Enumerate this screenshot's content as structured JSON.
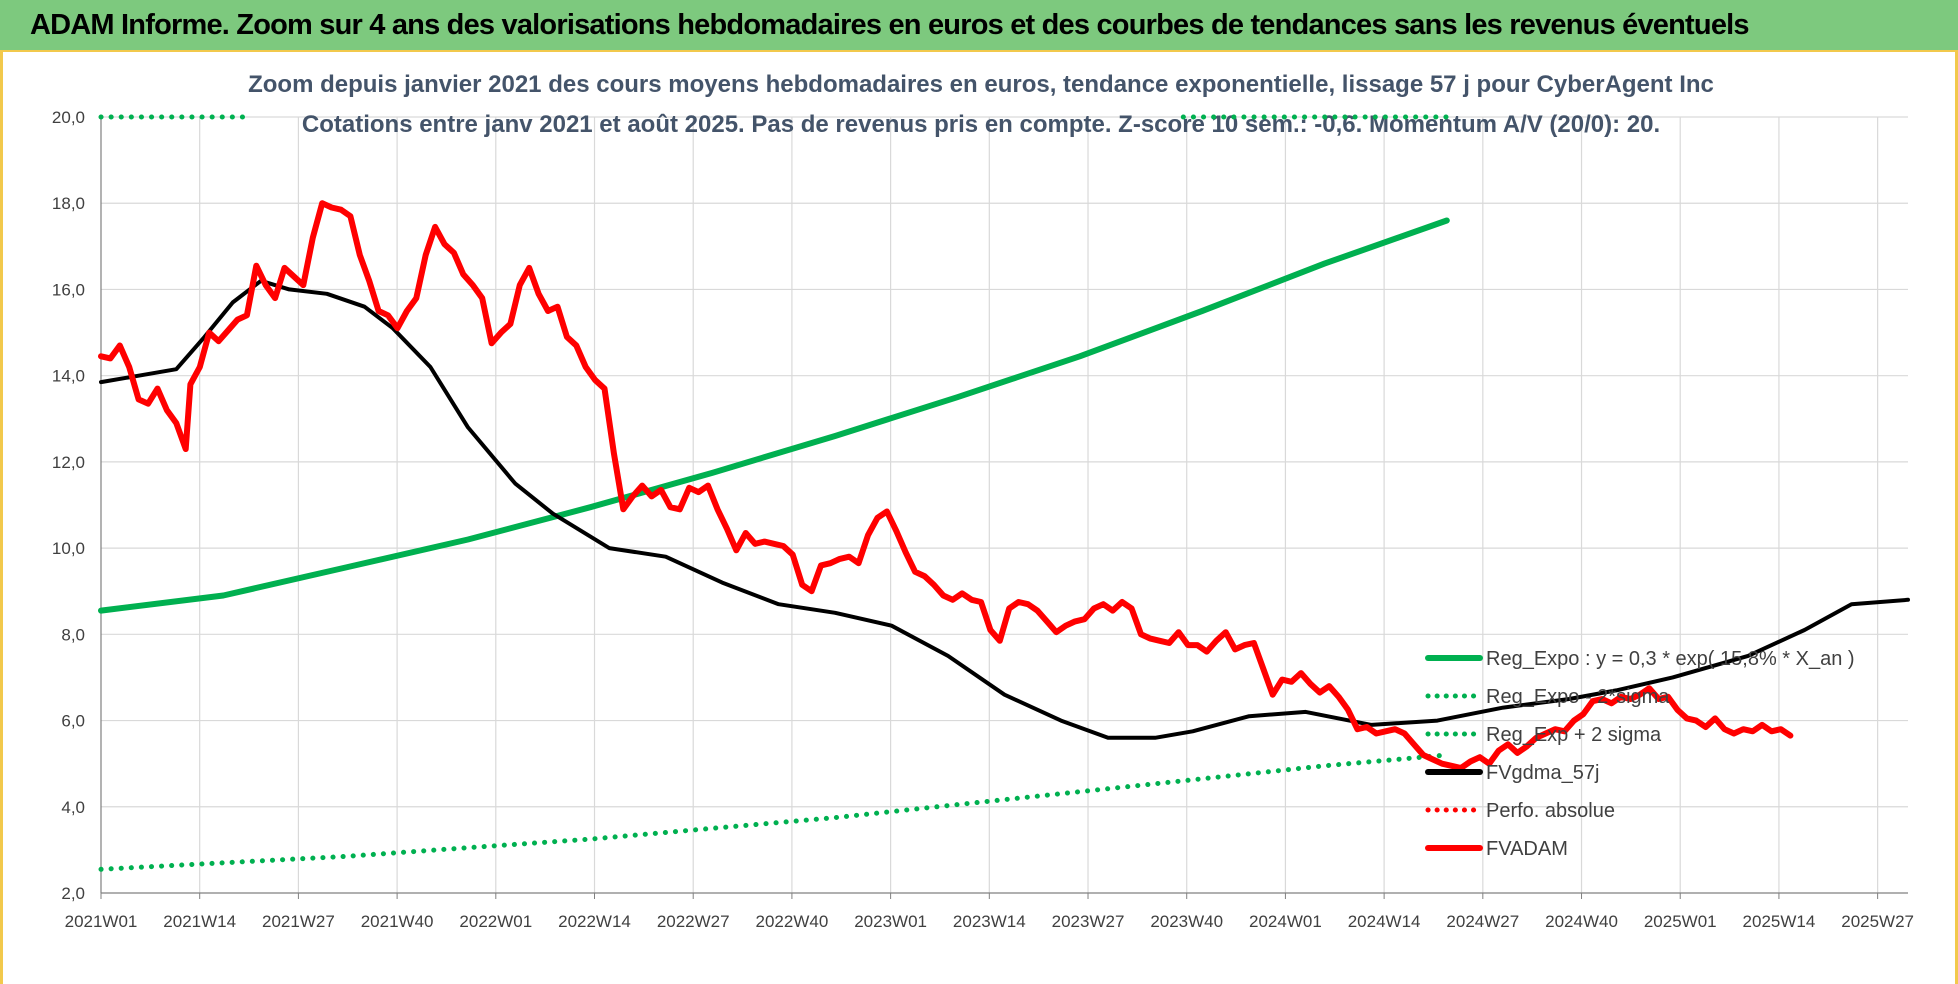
{
  "banner": {
    "title": "ADAM Informe. Zoom sur 4 ans des valorisations hebdomadaires en euros et des courbes de tendances sans les revenus éventuels"
  },
  "chart_data": {
    "type": "line",
    "title": "Zoom depuis janvier 2021 des cours moyens hebdomadaires en euros, tendance exponentielle, lissage 57 j pour CyberAgent Inc",
    "subtitle": "Cotations entre janv 2021 et août 2025.  Pas de revenus pris en compte. Z-score 10 sem.: -0,6. Momentum A/V (20/0): 20.",
    "x_tick_labels": [
      "2021W01",
      "2021W14",
      "2021W27",
      "2021W40",
      "2022W01",
      "2022W14",
      "2022W27",
      "2022W40",
      "2023W01",
      "2023W14",
      "2023W27",
      "2023W40",
      "2024W01",
      "2024W14",
      "2024W27",
      "2024W40",
      "2025W01",
      "2025W14",
      "2025W27"
    ],
    "x_range_weeks": [
      0,
      238
    ],
    "ylim": [
      2.0,
      20.0
    ],
    "y_tick_labels": [
      "2,0",
      "4,0",
      "6,0",
      "8,0",
      "10,0",
      "12,0",
      "14,0",
      "16,0",
      "18,0",
      "20,0"
    ],
    "grid": true,
    "legend_position": "right",
    "series": [
      {
        "name": "Reg_Expo : y = 0,3 * exp( 15,8% * X_an )",
        "color": "#00b050",
        "style": "solid",
        "points": [
          [
            0,
            8.55
          ],
          [
            26,
            8.9
          ],
          [
            52,
            9.55
          ],
          [
            78,
            10.2
          ],
          [
            104,
            10.95
          ],
          [
            130,
            11.75
          ],
          [
            156,
            12.6
          ],
          [
            182,
            13.5
          ],
          [
            208,
            14.45
          ],
          [
            234,
            15.5
          ],
          [
            260,
            16.6
          ],
          [
            286,
            17.6
          ]
        ]
      },
      {
        "name": "Reg_Expo - 2*sigma",
        "color": "#00b050",
        "style": "dotted",
        "points": [
          [
            0,
            2.55
          ],
          [
            26,
            2.7
          ],
          [
            52,
            2.85
          ],
          [
            78,
            3.05
          ],
          [
            104,
            3.25
          ],
          [
            130,
            3.5
          ],
          [
            156,
            3.75
          ],
          [
            182,
            4.05
          ],
          [
            208,
            4.35
          ],
          [
            234,
            4.65
          ],
          [
            260,
            4.95
          ],
          [
            286,
            5.2
          ]
        ]
      },
      {
        "name": "Reg_Exp + 2 sigma",
        "color": "#00b050",
        "style": "dotted",
        "segments": [
          [
            [
              0,
              20.0
            ],
            [
              32,
              20.0
            ]
          ],
          [
            [
              230,
              20.0
            ],
            [
              286,
              20.0
            ]
          ]
        ]
      },
      {
        "name": "FVgdma_57j",
        "color": "#000000",
        "style": "solid",
        "points": [
          [
            0,
            13.85
          ],
          [
            8,
            14.0
          ],
          [
            16,
            14.15
          ],
          [
            22,
            14.9
          ],
          [
            28,
            15.7
          ],
          [
            34,
            16.2
          ],
          [
            40,
            16.0
          ],
          [
            48,
            15.9
          ],
          [
            56,
            15.6
          ],
          [
            62,
            15.1
          ],
          [
            70,
            14.2
          ],
          [
            78,
            12.8
          ],
          [
            88,
            11.5
          ],
          [
            96,
            10.8
          ],
          [
            108,
            10.0
          ],
          [
            120,
            9.8
          ],
          [
            132,
            9.2
          ],
          [
            144,
            8.7
          ],
          [
            156,
            8.5
          ],
          [
            168,
            8.2
          ],
          [
            180,
            7.5
          ],
          [
            192,
            6.6
          ],
          [
            204,
            6.0
          ],
          [
            214,
            5.6
          ],
          [
            224,
            5.6
          ],
          [
            232,
            5.75
          ],
          [
            244,
            6.1
          ],
          [
            256,
            6.2
          ],
          [
            270,
            5.9
          ],
          [
            284,
            6.0
          ],
          [
            298,
            6.3
          ],
          [
            312,
            6.5
          ],
          [
            322,
            6.7
          ],
          [
            334,
            7.0
          ],
          [
            350,
            7.5
          ],
          [
            362,
            8.1
          ],
          [
            372,
            8.7
          ],
          [
            384,
            8.8
          ]
        ]
      },
      {
        "name": "Perfo. absolue",
        "color": "#ff0000",
        "style": "dotted",
        "points": []
      },
      {
        "name": "FVADAM",
        "color": "#ff0000",
        "style": "solid",
        "points": [
          [
            0,
            14.45
          ],
          [
            2,
            14.4
          ],
          [
            4,
            14.7
          ],
          [
            6,
            14.2
          ],
          [
            8,
            13.45
          ],
          [
            10,
            13.35
          ],
          [
            12,
            13.7
          ],
          [
            14,
            13.2
          ],
          [
            16,
            12.9
          ],
          [
            18,
            12.3
          ],
          [
            19,
            13.8
          ],
          [
            21,
            14.2
          ],
          [
            23,
            15.0
          ],
          [
            25,
            14.8
          ],
          [
            27,
            15.05
          ],
          [
            29,
            15.3
          ],
          [
            31,
            15.4
          ],
          [
            33,
            16.55
          ],
          [
            35,
            16.1
          ],
          [
            37,
            15.8
          ],
          [
            39,
            16.5
          ],
          [
            41,
            16.3
          ],
          [
            43,
            16.1
          ],
          [
            45,
            17.2
          ],
          [
            47,
            18.0
          ],
          [
            49,
            17.9
          ],
          [
            51,
            17.85
          ],
          [
            53,
            17.7
          ],
          [
            55,
            16.8
          ],
          [
            57,
            16.2
          ],
          [
            59,
            15.5
          ],
          [
            61,
            15.4
          ],
          [
            63,
            15.1
          ],
          [
            65,
            15.5
          ],
          [
            67,
            15.8
          ],
          [
            69,
            16.8
          ],
          [
            71,
            17.45
          ],
          [
            73,
            17.05
          ],
          [
            75,
            16.85
          ],
          [
            77,
            16.35
          ],
          [
            79,
            16.1
          ],
          [
            81,
            15.8
          ],
          [
            83,
            14.75
          ],
          [
            85,
            15.0
          ],
          [
            87,
            15.2
          ],
          [
            89,
            16.1
          ],
          [
            91,
            16.5
          ],
          [
            93,
            15.9
          ],
          [
            95,
            15.5
          ],
          [
            97,
            15.6
          ],
          [
            99,
            14.9
          ],
          [
            101,
            14.7
          ],
          [
            103,
            14.2
          ],
          [
            105,
            13.9
          ],
          [
            107,
            13.7
          ],
          [
            109,
            12.2
          ],
          [
            111,
            10.9
          ],
          [
            113,
            11.2
          ],
          [
            115,
            11.45
          ],
          [
            117,
            11.2
          ],
          [
            119,
            11.35
          ],
          [
            121,
            10.95
          ],
          [
            123,
            10.9
          ],
          [
            125,
            11.4
          ],
          [
            127,
            11.3
          ],
          [
            129,
            11.45
          ],
          [
            131,
            10.9
          ],
          [
            133,
            10.45
          ],
          [
            135,
            9.95
          ],
          [
            137,
            10.35
          ],
          [
            139,
            10.1
          ],
          [
            141,
            10.15
          ],
          [
            143,
            10.1
          ],
          [
            145,
            10.05
          ],
          [
            147,
            9.85
          ],
          [
            149,
            9.15
          ],
          [
            151,
            9.0
          ],
          [
            153,
            9.6
          ],
          [
            155,
            9.65
          ],
          [
            157,
            9.75
          ],
          [
            159,
            9.8
          ],
          [
            161,
            9.65
          ],
          [
            163,
            10.3
          ],
          [
            165,
            10.7
          ],
          [
            167,
            10.85
          ],
          [
            169,
            10.4
          ],
          [
            171,
            9.9
          ],
          [
            173,
            9.45
          ],
          [
            175,
            9.35
          ],
          [
            177,
            9.15
          ],
          [
            179,
            8.9
          ],
          [
            181,
            8.8
          ],
          [
            183,
            8.95
          ],
          [
            185,
            8.8
          ],
          [
            187,
            8.75
          ],
          [
            189,
            8.1
          ],
          [
            191,
            7.85
          ],
          [
            193,
            8.6
          ],
          [
            195,
            8.75
          ],
          [
            197,
            8.7
          ],
          [
            199,
            8.55
          ],
          [
            201,
            8.3
          ],
          [
            203,
            8.05
          ],
          [
            205,
            8.2
          ],
          [
            207,
            8.3
          ],
          [
            209,
            8.35
          ],
          [
            211,
            8.6
          ],
          [
            213,
            8.7
          ],
          [
            215,
            8.55
          ],
          [
            217,
            8.75
          ],
          [
            219,
            8.6
          ],
          [
            221,
            8.0
          ],
          [
            223,
            7.9
          ],
          [
            225,
            7.85
          ],
          [
            227,
            7.8
          ],
          [
            229,
            8.05
          ],
          [
            231,
            7.75
          ],
          [
            233,
            7.75
          ],
          [
            235,
            7.6
          ],
          [
            237,
            7.85
          ],
          [
            239,
            8.05
          ],
          [
            241,
            7.65
          ],
          [
            243,
            7.75
          ],
          [
            245,
            7.8
          ],
          [
            247,
            7.2
          ],
          [
            249,
            6.6
          ],
          [
            251,
            6.95
          ],
          [
            253,
            6.9
          ],
          [
            255,
            7.1
          ],
          [
            257,
            6.85
          ],
          [
            259,
            6.65
          ],
          [
            261,
            6.8
          ],
          [
            263,
            6.55
          ],
          [
            265,
            6.25
          ],
          [
            267,
            5.8
          ],
          [
            269,
            5.85
          ],
          [
            271,
            5.7
          ],
          [
            273,
            5.75
          ],
          [
            275,
            5.8
          ],
          [
            277,
            5.7
          ],
          [
            279,
            5.45
          ],
          [
            281,
            5.2
          ],
          [
            283,
            5.1
          ],
          [
            285,
            5.0
          ],
          [
            287,
            4.95
          ],
          [
            289,
            4.9
          ],
          [
            291,
            5.05
          ],
          [
            293,
            5.15
          ],
          [
            295,
            5.0
          ],
          [
            297,
            5.3
          ],
          [
            299,
            5.45
          ],
          [
            301,
            5.25
          ],
          [
            303,
            5.4
          ],
          [
            305,
            5.6
          ],
          [
            307,
            5.7
          ],
          [
            309,
            5.8
          ],
          [
            311,
            5.75
          ],
          [
            313,
            6.0
          ],
          [
            315,
            6.15
          ],
          [
            317,
            6.45
          ],
          [
            319,
            6.5
          ],
          [
            321,
            6.4
          ],
          [
            323,
            6.55
          ],
          [
            325,
            6.5
          ],
          [
            327,
            6.6
          ],
          [
            329,
            6.75
          ],
          [
            331,
            6.5
          ],
          [
            333,
            6.55
          ],
          [
            335,
            6.25
          ],
          [
            337,
            6.05
          ],
          [
            339,
            6.0
          ],
          [
            341,
            5.85
          ],
          [
            343,
            6.05
          ],
          [
            345,
            5.8
          ],
          [
            347,
            5.7
          ],
          [
            349,
            5.8
          ],
          [
            351,
            5.75
          ],
          [
            353,
            5.9
          ],
          [
            355,
            5.75
          ],
          [
            357,
            5.8
          ],
          [
            359,
            5.65
          ]
        ]
      }
    ]
  }
}
